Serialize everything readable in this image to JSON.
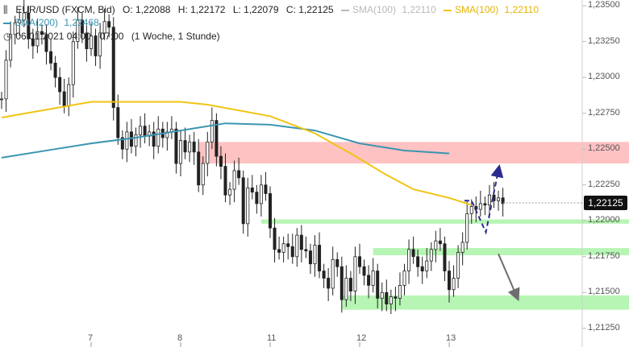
{
  "header": {
    "symbol_line": {
      "icon": "bars-icon",
      "title": "EUR/USD (FXCM, Bid)",
      "open": "O: 1,22088",
      "high": "H: 1,22172",
      "low": "L: 1,22079",
      "close": "C: 1,22125",
      "sma_gray_label": "SMA(100)",
      "sma_gray_value": "1,22110",
      "sma_yellow_label": "SMA(100)",
      "sma_yellow_value": "1,22110"
    },
    "sma200_line": {
      "label": "SMA(200)",
      "value": "1,22468"
    },
    "time_line": {
      "icon": "clock-icon",
      "range": "06.01.2021 04:00 - 07:00",
      "period": "(1 Woche, 1 Stunde)"
    }
  },
  "colors": {
    "sma_gray": "#b9b9b9",
    "sma100": "#f2c313",
    "sma200": "#3a95b1",
    "resistance_zone": "#ffc2c2",
    "support_zone": "#b7f5b4",
    "up_arrow": "#2b2b8f",
    "down_arrow": "#6e6e6e"
  },
  "price_badge": "1,22125",
  "chart_data": {
    "type": "candlestick",
    "series_name": "EUR/USD (FXCM, Bid)",
    "ylim": [
      1.2112,
      1.2354
    ],
    "y_ticks": [
      "1,23500",
      "1,23250",
      "1,23000",
      "1,22750",
      "1,22500",
      "1,22250",
      "1,22000",
      "1,21750",
      "1,21500",
      "1,21250"
    ],
    "y_tick_values": [
      1.235,
      1.2325,
      1.23,
      1.2275,
      1.225,
      1.2225,
      1.22,
      1.2175,
      1.215,
      1.2125
    ],
    "x_ticks": [
      "7",
      "8",
      "11",
      "12",
      "13"
    ],
    "x_tick_index": [
      20,
      40,
      60,
      80,
      100
    ],
    "close": [
      1.2285,
      1.2312,
      1.233,
      1.2338,
      1.234,
      1.2345,
      1.2327,
      1.2322,
      1.2332,
      1.233,
      1.2318,
      1.231,
      1.23,
      1.229,
      1.228,
      1.2295,
      1.2325,
      1.234,
      1.2331,
      1.232,
      1.2329,
      1.2315,
      1.2331,
      1.2339,
      1.2335,
      1.2279,
      1.2258,
      1.225,
      1.2262,
      1.2252,
      1.226,
      1.2266,
      1.2259,
      1.2262,
      1.2252,
      1.2264,
      1.2258,
      1.2262,
      1.2264,
      1.224,
      1.2256,
      1.2248,
      1.2255,
      1.2248,
      1.2225,
      1.224,
      1.2255,
      1.227,
      1.2245,
      1.2238,
      1.2218,
      1.2222,
      1.2235,
      1.223,
      1.2198,
      1.2223,
      1.222,
      1.2212,
      1.2225,
      1.2219,
      1.2195,
      1.218,
      1.2178,
      1.2184,
      1.2182,
      1.2175,
      1.219,
      1.218,
      1.2179,
      1.217,
      1.2183,
      1.2165,
      1.216,
      1.2153,
      1.2173,
      1.2168,
      1.2145,
      1.216,
      1.2151,
      1.2175,
      1.2168,
      1.2162,
      1.2155,
      1.2165,
      1.2146,
      1.215,
      1.2142,
      1.2147,
      1.2146,
      1.2155,
      1.2165,
      1.218,
      1.2175,
      1.2168,
      1.2165,
      1.2172,
      1.218,
      1.2186,
      1.2184,
      1.2165,
      1.2152,
      1.216,
      1.2178,
      1.2185,
      1.2205,
      1.221,
      1.2208,
      1.2212,
      1.2211,
      1.2218,
      1.2214,
      1.2216,
      1.2212
    ],
    "sma100": [
      [
        0,
        1.2272
      ],
      [
        20,
        1.2283
      ],
      [
        40,
        1.2283
      ],
      [
        46,
        1.2281
      ],
      [
        60,
        1.2273
      ],
      [
        70,
        1.2261
      ],
      [
        78,
        1.2247
      ],
      [
        86,
        1.2232
      ],
      [
        92,
        1.2222
      ],
      [
        100,
        1.2216
      ],
      [
        105,
        1.2211
      ]
    ],
    "sma200": [
      [
        0,
        1.2244
      ],
      [
        12,
        1.225
      ],
      [
        20,
        1.2254
      ],
      [
        30,
        1.2258
      ],
      [
        40,
        1.2263
      ],
      [
        50,
        1.2268
      ],
      [
        60,
        1.2267
      ],
      [
        70,
        1.2263
      ],
      [
        80,
        1.2254
      ],
      [
        90,
        1.2249
      ],
      [
        100,
        1.2247
      ]
    ],
    "zones": [
      {
        "kind": "resistance",
        "from": 1.224,
        "to": 1.2255,
        "start": 44
      },
      {
        "kind": "support",
        "from": 1.2198,
        "to": 1.2201,
        "start": 58
      },
      {
        "kind": "support",
        "from": 1.2176,
        "to": 1.2181,
        "start": 83
      },
      {
        "kind": "support",
        "from": 1.2138,
        "to": 1.2148,
        "start": 76
      }
    ],
    "projection_up": [
      [
        103.4,
        1.2214
      ],
      [
        105.0,
        1.2214
      ],
      [
        108.2,
        1.2192
      ],
      [
        111.0,
        1.2235
      ]
    ],
    "projection_down": [
      [
        111.0,
        1.2177
      ],
      [
        115.0,
        1.2148
      ]
    ]
  }
}
